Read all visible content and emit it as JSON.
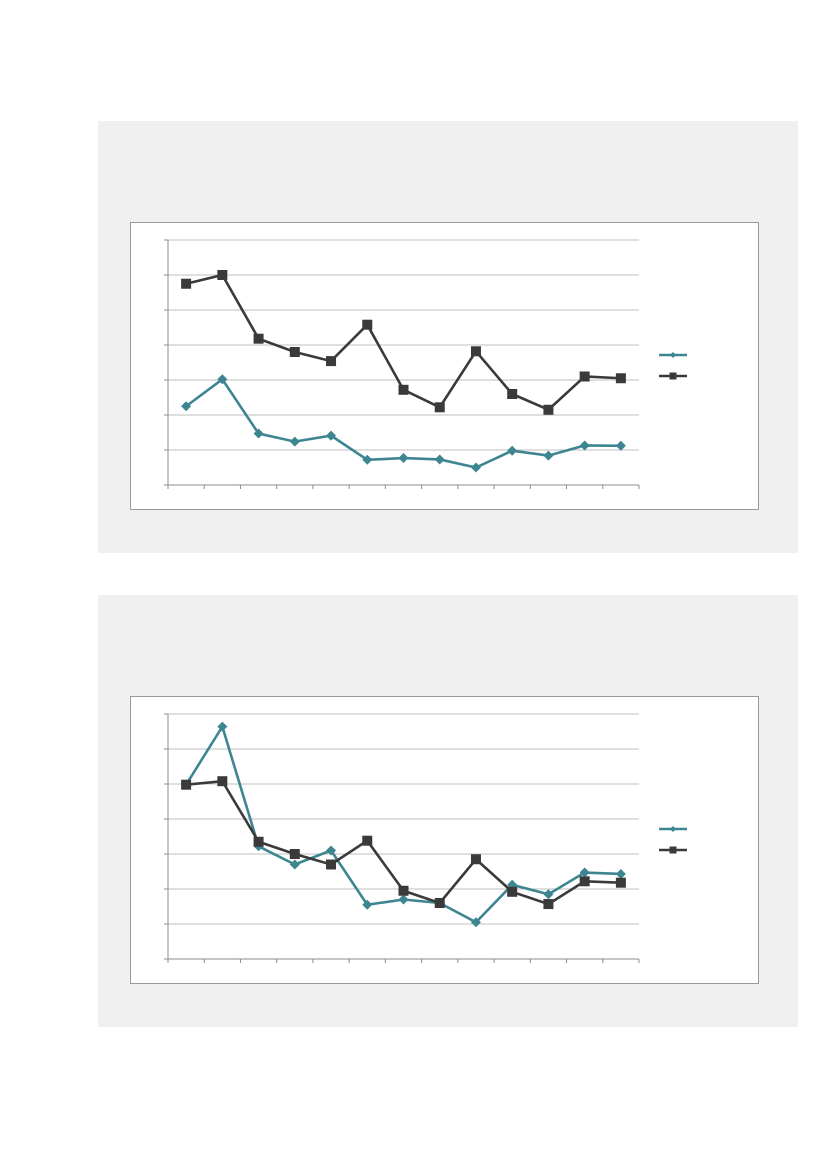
{
  "colors": {
    "teal": "#3d8590",
    "dark": "#3a3a3a",
    "grid": "#bfbfbf",
    "panel": "#f0f0f0"
  },
  "chart_data": [
    {
      "type": "line",
      "title": "",
      "xlabel": "",
      "ylabel": "",
      "ylim": [
        0,
        7
      ],
      "grid": true,
      "legend": "right",
      "series": [
        {
          "values": [
            2.25,
            3.02,
            1.47,
            1.24,
            1.41,
            0.72,
            0.77,
            0.73,
            0.5,
            0.98,
            0.84,
            1.13,
            1.12
          ],
          "color": "#3d8590",
          "marker": "diamond"
        },
        {
          "values": [
            5.75,
            6.0,
            4.18,
            3.8,
            3.54,
            4.58,
            2.72,
            2.22,
            3.82,
            2.6,
            2.15,
            3.1,
            3.05
          ],
          "color": "#3a3a3a",
          "marker": "square"
        }
      ]
    },
    {
      "type": "line",
      "title": "",
      "xlabel": "",
      "ylabel": "",
      "ylim": [
        0,
        7
      ],
      "grid": true,
      "legend": "right",
      "series": [
        {
          "values": [
            4.98,
            6.64,
            3.22,
            2.7,
            3.1,
            1.55,
            1.7,
            1.6,
            1.05,
            2.12,
            1.85,
            2.47,
            2.43
          ],
          "color": "#3d8590",
          "marker": "diamond"
        },
        {
          "values": [
            4.98,
            5.08,
            3.35,
            3.0,
            2.7,
            3.38,
            1.95,
            1.6,
            2.85,
            1.92,
            1.57,
            2.22,
            2.18
          ],
          "color": "#3a3a3a",
          "marker": "square"
        }
      ]
    }
  ]
}
